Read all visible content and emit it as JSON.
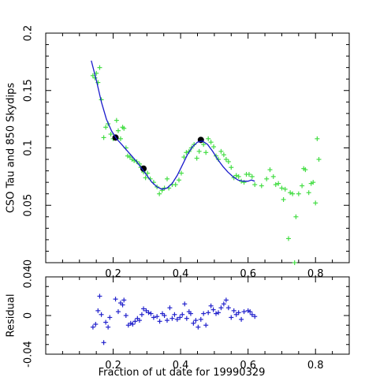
{
  "chart_data": [
    {
      "type": "scatter",
      "title": "",
      "xlabel": "",
      "ylabel": "CSO Tau and 850 Skydips",
      "xlim": [
        0.0,
        0.9
      ],
      "ylim": [
        0.0,
        0.2
      ],
      "xticks": [
        "0.2",
        "0.4",
        "0.6",
        "0.8"
      ],
      "yticks": [
        "0",
        "0.05",
        "0.1",
        "0.15",
        "0.2"
      ],
      "colors": {
        "cso": "#44dd44",
        "fit": "#1a1acc",
        "skydip": "#000000"
      },
      "series": [
        {
          "marker": "plus",
          "color": "#44dd44",
          "points": [
            [
              0.14,
              0.163
            ],
            [
              0.146,
              0.161
            ],
            [
              0.15,
              0.165
            ],
            [
              0.155,
              0.157
            ],
            [
              0.16,
              0.17
            ],
            [
              0.165,
              0.142
            ],
            [
              0.172,
              0.109
            ],
            [
              0.178,
              0.118
            ],
            [
              0.185,
              0.121
            ],
            [
              0.193,
              0.112
            ],
            [
              0.2,
              0.108
            ],
            [
              0.21,
              0.124
            ],
            [
              0.215,
              0.115
            ],
            [
              0.222,
              0.108
            ],
            [
              0.228,
              0.118
            ],
            [
              0.232,
              0.117
            ],
            [
              0.238,
              0.1
            ],
            [
              0.243,
              0.093
            ],
            [
              0.25,
              0.092
            ],
            [
              0.256,
              0.09
            ],
            [
              0.262,
              0.089
            ],
            [
              0.27,
              0.088
            ],
            [
              0.278,
              0.086
            ],
            [
              0.282,
              0.083
            ],
            [
              0.288,
              0.081
            ],
            [
              0.29,
              0.079
            ],
            [
              0.296,
              0.074
            ],
            [
              0.302,
              0.078
            ],
            [
              0.31,
              0.073
            ],
            [
              0.32,
              0.07
            ],
            [
              0.33,
              0.066
            ],
            [
              0.337,
              0.06
            ],
            [
              0.345,
              0.063
            ],
            [
              0.352,
              0.065
            ],
            [
              0.36,
              0.073
            ],
            [
              0.365,
              0.065
            ],
            [
              0.375,
              0.068
            ],
            [
              0.385,
              0.068
            ],
            [
              0.395,
              0.072
            ],
            [
              0.402,
              0.078
            ],
            [
              0.41,
              0.092
            ],
            [
              0.417,
              0.096
            ],
            [
              0.425,
              0.097
            ],
            [
              0.432,
              0.1
            ],
            [
              0.44,
              0.103
            ],
            [
              0.448,
              0.091
            ],
            [
              0.455,
              0.097
            ],
            [
              0.462,
              0.107
            ],
            [
              0.468,
              0.103
            ],
            [
              0.475,
              0.096
            ],
            [
              0.482,
              0.108
            ],
            [
              0.49,
              0.105
            ],
            [
              0.498,
              0.101
            ],
            [
              0.505,
              0.093
            ],
            [
              0.512,
              0.09
            ],
            [
              0.52,
              0.097
            ],
            [
              0.528,
              0.094
            ],
            [
              0.535,
              0.09
            ],
            [
              0.542,
              0.088
            ],
            [
              0.55,
              0.083
            ],
            [
              0.558,
              0.074
            ],
            [
              0.565,
              0.076
            ],
            [
              0.572,
              0.075
            ],
            [
              0.58,
              0.071
            ],
            [
              0.588,
              0.07
            ],
            [
              0.595,
              0.077
            ],
            [
              0.603,
              0.077
            ],
            [
              0.612,
              0.075
            ],
            [
              0.62,
              0.068
            ],
            [
              0.64,
              0.067
            ],
            [
              0.655,
              0.073
            ],
            [
              0.665,
              0.081
            ],
            [
              0.675,
              0.075
            ],
            [
              0.682,
              0.068
            ],
            [
              0.69,
              0.069
            ],
            [
              0.7,
              0.065
            ],
            [
              0.705,
              0.055
            ],
            [
              0.71,
              0.064
            ],
            [
              0.72,
              0.021
            ],
            [
              0.725,
              0.061
            ],
            [
              0.732,
              0.06
            ],
            [
              0.738,
              0.0
            ],
            [
              0.742,
              0.04
            ],
            [
              0.75,
              0.06
            ],
            [
              0.76,
              0.067
            ],
            [
              0.765,
              0.082
            ],
            [
              0.77,
              0.081
            ],
            [
              0.78,
              0.061
            ],
            [
              0.787,
              0.069
            ],
            [
              0.793,
              0.07
            ],
            [
              0.8,
              0.052
            ],
            [
              0.805,
              0.108
            ],
            [
              0.81,
              0.09
            ]
          ]
        },
        {
          "marker": "dot",
          "color": "#000000",
          "points": [
            [
              0.207,
              0.109
            ],
            [
              0.29,
              0.082
            ],
            [
              0.46,
              0.107
            ]
          ]
        },
        {
          "marker": "line",
          "color": "#1a1acc",
          "points": [
            [
              0.135,
              0.176
            ],
            [
              0.15,
              0.159
            ],
            [
              0.165,
              0.14
            ],
            [
              0.18,
              0.125
            ],
            [
              0.195,
              0.115
            ],
            [
              0.21,
              0.108
            ],
            [
              0.225,
              0.103
            ],
            [
              0.24,
              0.098
            ],
            [
              0.255,
              0.093
            ],
            [
              0.27,
              0.088
            ],
            [
              0.285,
              0.082
            ],
            [
              0.3,
              0.076
            ],
            [
              0.315,
              0.07
            ],
            [
              0.33,
              0.066
            ],
            [
              0.345,
              0.064
            ],
            [
              0.36,
              0.065
            ],
            [
              0.375,
              0.069
            ],
            [
              0.39,
              0.076
            ],
            [
              0.405,
              0.085
            ],
            [
              0.42,
              0.094
            ],
            [
              0.435,
              0.101
            ],
            [
              0.45,
              0.105
            ],
            [
              0.465,
              0.106
            ],
            [
              0.48,
              0.103
            ],
            [
              0.495,
              0.097
            ],
            [
              0.51,
              0.09
            ],
            [
              0.525,
              0.084
            ],
            [
              0.54,
              0.079
            ],
            [
              0.555,
              0.075
            ],
            [
              0.57,
              0.072
            ],
            [
              0.585,
              0.071
            ],
            [
              0.6,
              0.071
            ],
            [
              0.61,
              0.072
            ],
            [
              0.62,
              0.071
            ]
          ]
        }
      ]
    },
    {
      "type": "scatter",
      "title": "",
      "xlabel": "Fraction of ut date for 19990329",
      "ylabel": "Residual",
      "xlim": [
        0.0,
        0.9
      ],
      "ylim": [
        -0.04,
        0.04
      ],
      "xticks": [
        "0.2",
        "0.4",
        "0.6",
        "0.8"
      ],
      "yticks": [
        "-0.04",
        "0",
        "0.04"
      ],
      "series": [
        {
          "marker": "plus",
          "color": "#2222cc",
          "points": [
            [
              0.14,
              -0.012
            ],
            [
              0.148,
              -0.009
            ],
            [
              0.155,
              0.005
            ],
            [
              0.16,
              0.02
            ],
            [
              0.165,
              0.001
            ],
            [
              0.172,
              -0.028
            ],
            [
              0.178,
              -0.007
            ],
            [
              0.185,
              -0.012
            ],
            [
              0.19,
              -0.002
            ],
            [
              0.207,
              0.017
            ],
            [
              0.215,
              0.004
            ],
            [
              0.222,
              0.013
            ],
            [
              0.228,
              0.011
            ],
            [
              0.232,
              0.016
            ],
            [
              0.238,
              0.0
            ],
            [
              0.245,
              -0.01
            ],
            [
              0.252,
              -0.008
            ],
            [
              0.258,
              -0.009
            ],
            [
              0.265,
              -0.006
            ],
            [
              0.272,
              -0.003
            ],
            [
              0.278,
              -0.005
            ],
            [
              0.285,
              0.001
            ],
            [
              0.29,
              0.007
            ],
            [
              0.298,
              0.005
            ],
            [
              0.305,
              0.003
            ],
            [
              0.312,
              0.002
            ],
            [
              0.32,
              -0.002
            ],
            [
              0.33,
              -0.001
            ],
            [
              0.338,
              -0.006
            ],
            [
              0.346,
              0.002
            ],
            [
              0.352,
              0.0
            ],
            [
              0.36,
              -0.005
            ],
            [
              0.368,
              0.008
            ],
            [
              0.375,
              -0.003
            ],
            [
              0.382,
              0.001
            ],
            [
              0.39,
              -0.004
            ],
            [
              0.398,
              -0.002
            ],
            [
              0.405,
              0.001
            ],
            [
              0.412,
              0.012
            ],
            [
              0.418,
              -0.003
            ],
            [
              0.425,
              0.004
            ],
            [
              0.43,
              0.002
            ],
            [
              0.438,
              -0.008
            ],
            [
              0.445,
              -0.005
            ],
            [
              0.452,
              -0.012
            ],
            [
              0.46,
              -0.004
            ],
            [
              0.468,
              0.002
            ],
            [
              0.475,
              -0.01
            ],
            [
              0.482,
              0.003
            ],
            [
              0.49,
              0.01
            ],
            [
              0.497,
              0.006
            ],
            [
              0.505,
              0.002
            ],
            [
              0.512,
              0.003
            ],
            [
              0.52,
              0.008
            ],
            [
              0.528,
              0.012
            ],
            [
              0.535,
              0.016
            ],
            [
              0.542,
              0.008
            ],
            [
              0.55,
              -0.002
            ],
            [
              0.558,
              0.005
            ],
            [
              0.565,
              0.001
            ],
            [
              0.572,
              0.003
            ],
            [
              0.58,
              -0.004
            ],
            [
              0.588,
              0.004
            ],
            [
              0.6,
              0.005
            ],
            [
              0.606,
              0.004
            ],
            [
              0.612,
              0.001
            ],
            [
              0.62,
              -0.001
            ]
          ]
        }
      ]
    }
  ]
}
